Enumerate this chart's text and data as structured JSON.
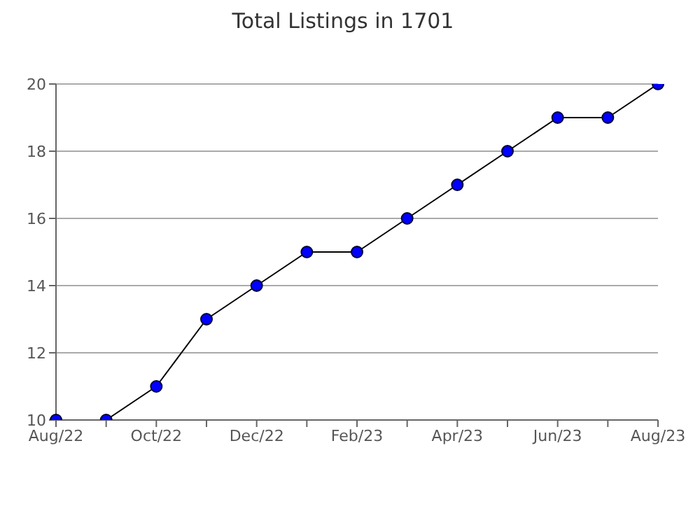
{
  "chart_data": {
    "type": "line",
    "title": "Total Listings in 1701",
    "categories": [
      "Aug/22",
      null,
      "Oct/22",
      null,
      "Dec/22",
      null,
      "Feb/23",
      null,
      "Apr/23",
      null,
      "Jun/23",
      null,
      "Aug/23"
    ],
    "series": [
      {
        "color": "#0000ff",
        "values": [
          10,
          10,
          11,
          13,
          14,
          15,
          15,
          16,
          17,
          18,
          19,
          19,
          20
        ]
      }
    ],
    "ylim": [
      10,
      20
    ],
    "yticks": [
      10,
      12,
      14,
      16,
      18,
      20
    ],
    "grid": "y",
    "marker": "circle",
    "line_style": "solid"
  }
}
